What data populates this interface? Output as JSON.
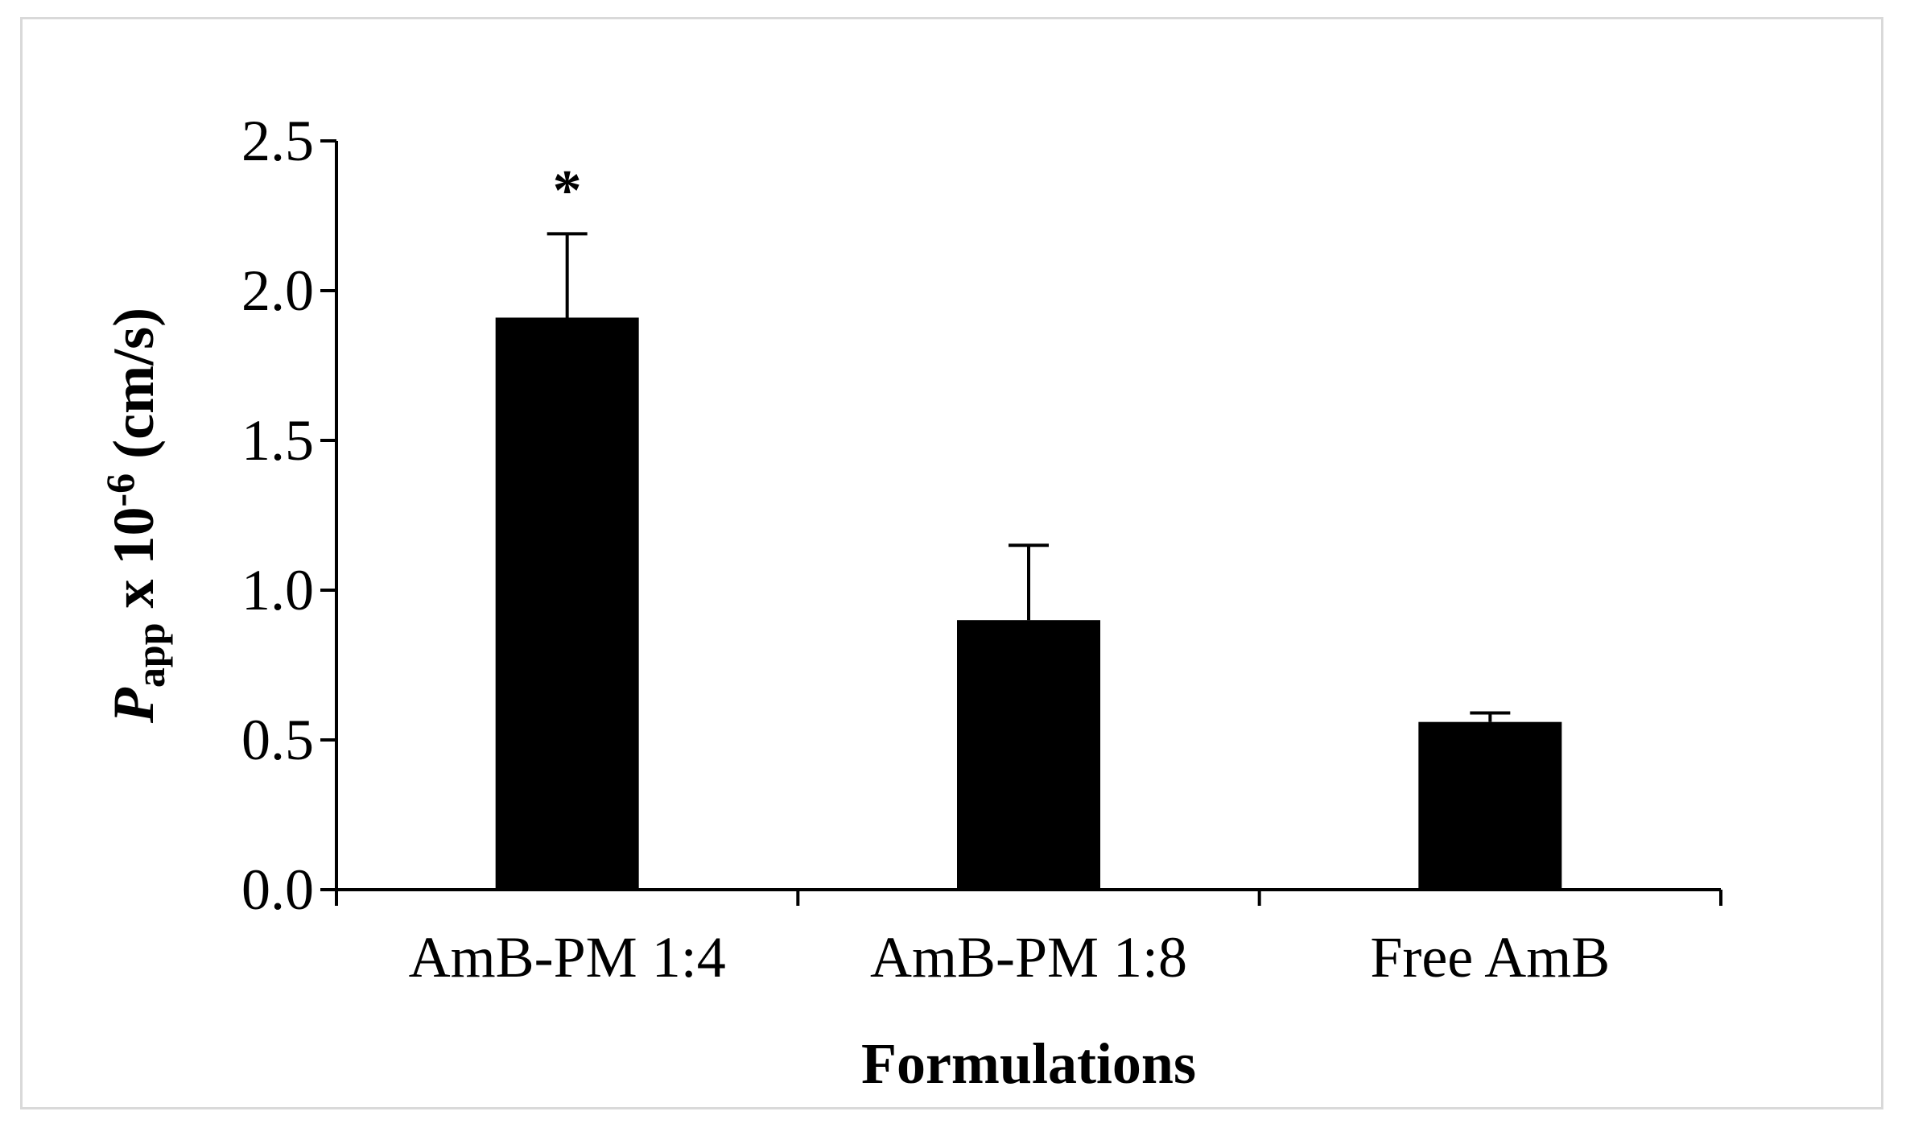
{
  "chart_data": {
    "type": "bar",
    "categories": [
      "AmB-PM 1:4",
      "AmB-PM 1:8",
      "Free AmB"
    ],
    "values": [
      1.91,
      0.9,
      0.56
    ],
    "error_upper": [
      0.28,
      0.25,
      0.03
    ],
    "annotations": [
      "*",
      "",
      ""
    ],
    "ylim": [
      0,
      2.5
    ],
    "yticks": [
      "0.0",
      "0.5",
      "1.0",
      "1.5",
      "2.0",
      "2.5"
    ],
    "ytick_values": [
      0,
      0.5,
      1.0,
      1.5,
      2.0,
      2.5
    ],
    "xlabel": "Formulations",
    "ylabel": {
      "symbol": "P",
      "subscript": "app",
      "middle": " x 10",
      "superscript": "-6",
      "unit": " (cm/s)"
    },
    "bar_color": "#000000",
    "grid": false,
    "legend": "none"
  }
}
